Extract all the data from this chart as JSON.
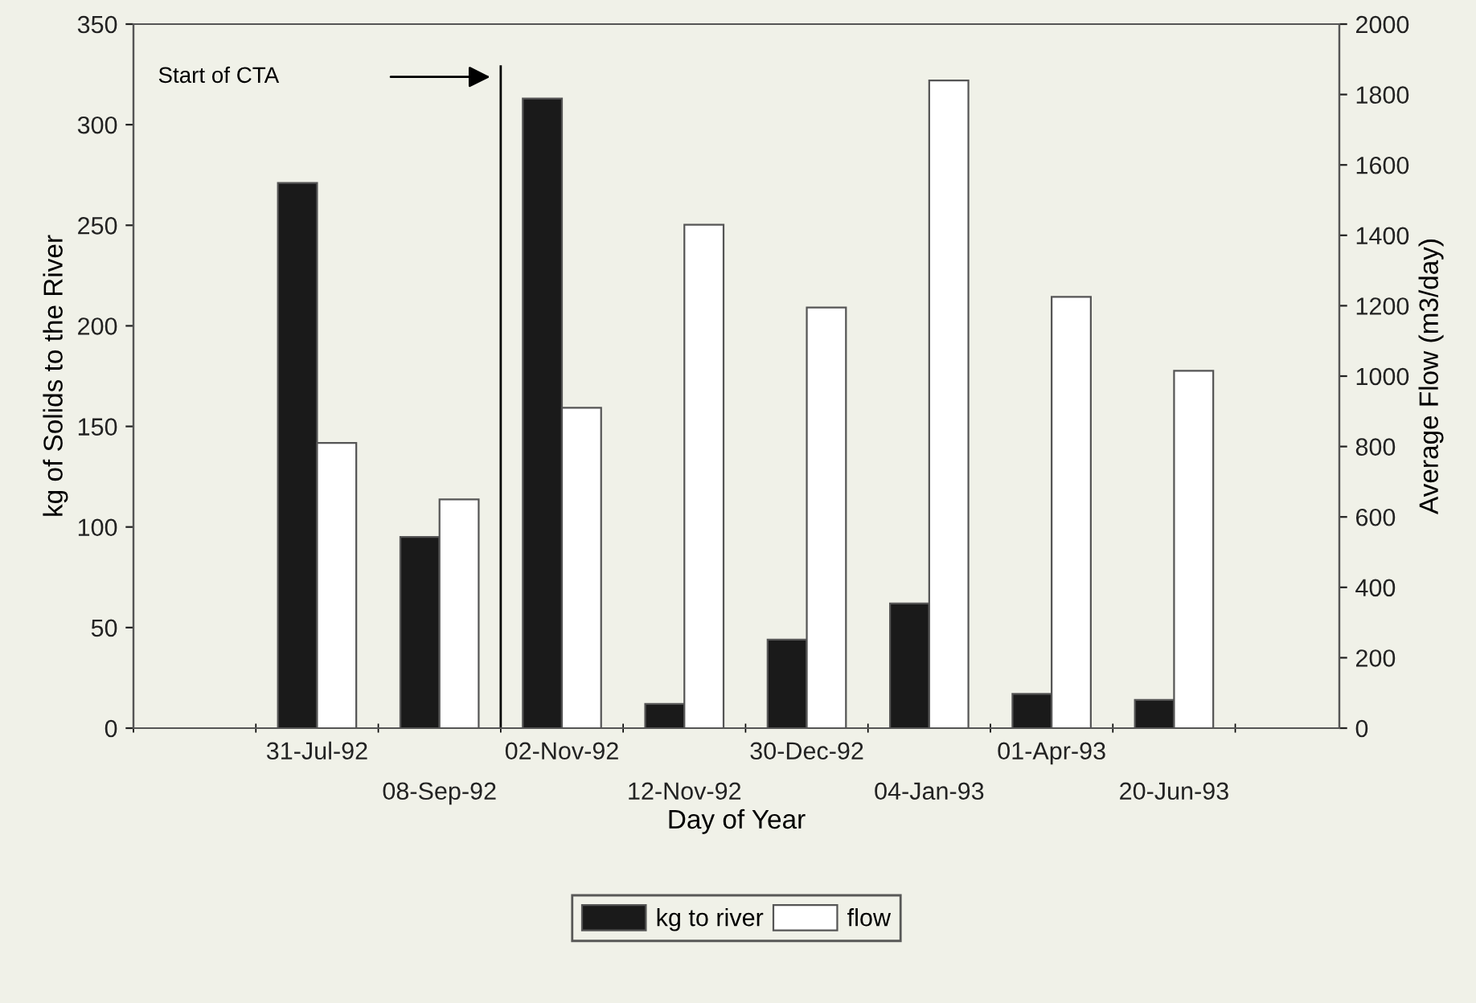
{
  "chart_data": {
    "type": "bar",
    "xlabel": "Day of Year",
    "ylabel": "kg of Solids to the River",
    "y2label": "Average Flow (m3/day)",
    "categories": [
      "31-Jul-92",
      "08-Sep-92",
      "02-Nov-92",
      "12-Nov-92",
      "30-Dec-92",
      "04-Jan-93",
      "01-Apr-93",
      "20-Jun-93"
    ],
    "series": [
      {
        "name": "kg to river",
        "color": "#1a1a1a",
        "values": [
          271,
          95,
          313,
          12,
          44,
          62,
          17,
          14
        ]
      },
      {
        "name": "flow",
        "color": "#ffffff",
        "axis": "y2",
        "values": [
          810,
          650,
          910,
          1430,
          1195,
          1840,
          1225,
          1015
        ]
      }
    ],
    "ylim": [
      0,
      350
    ],
    "yticks": [
      0,
      50,
      100,
      150,
      200,
      250,
      300,
      350
    ],
    "y2lim": [
      0,
      2000
    ],
    "y2ticks": [
      0,
      200,
      400,
      600,
      800,
      1000,
      1200,
      1400,
      1600,
      1800,
      2000
    ],
    "annotations": [
      "Start of CTA"
    ],
    "legend": "bottom",
    "grid": false
  }
}
